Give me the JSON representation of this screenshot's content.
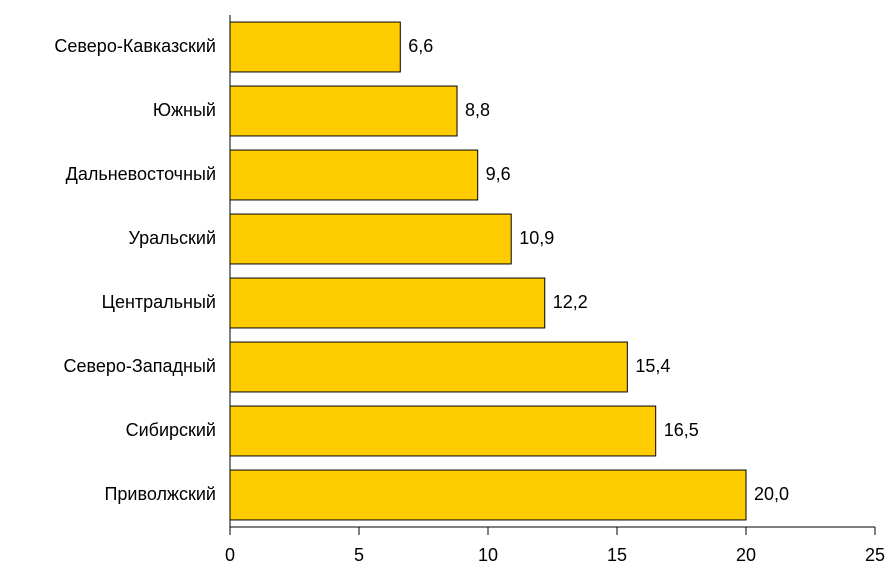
{
  "chart_data": {
    "type": "barh",
    "categories": [
      "Северо-Кавказский",
      "Южный",
      "Дальневосточный",
      "Уральский",
      "Центральный",
      "Северо-Западный",
      "Сибирский",
      "Приволжский"
    ],
    "values": [
      6.6,
      8.8,
      9.6,
      10.9,
      12.2,
      15.4,
      16.5,
      20.0
    ],
    "value_labels": [
      "6,6",
      "8,8",
      "9,6",
      "10,9",
      "12,2",
      "15,4",
      "16,5",
      "20,0"
    ],
    "color": "#ffcc00",
    "xlim": [
      0,
      25
    ],
    "xticks": [
      0,
      5,
      10,
      15,
      20,
      25
    ],
    "grid": false
  }
}
